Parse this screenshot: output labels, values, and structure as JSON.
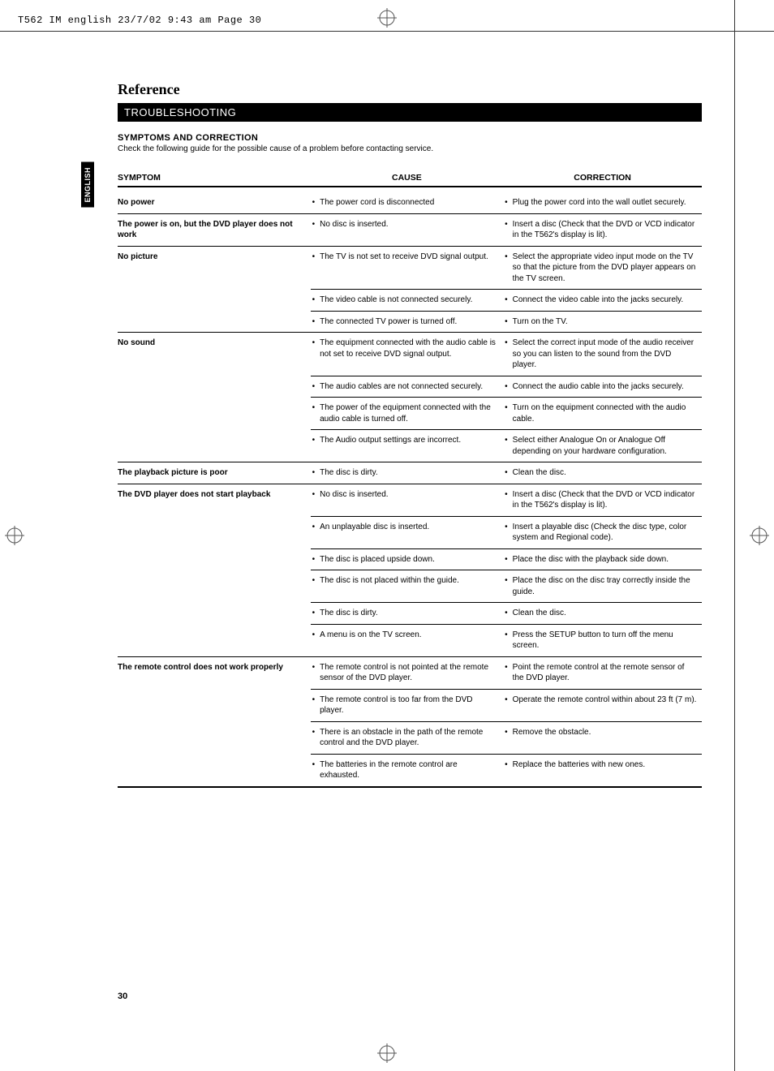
{
  "print_header": "T562 IM english  23/7/02  9:43 am  Page 30",
  "language_tab": "ENGLISH",
  "page_number": "30",
  "section_title": "Reference",
  "section_bar": "TROUBLESHOOTING",
  "subheading": "SYMPTOMS AND CORRECTION",
  "intro": "Check the following guide for the possible cause of a problem before contacting service.",
  "headers": {
    "symptom": "SYMPTOM",
    "cause": "CAUSE",
    "correction": "CORRECTION"
  },
  "rows": [
    {
      "symptom": "No power",
      "pairs": [
        {
          "cause": "The power cord is disconnected",
          "correction": "Plug the power cord into the wall outlet securely."
        }
      ]
    },
    {
      "symptom": "The power is on, but the DVD player does not work",
      "pairs": [
        {
          "cause": "No disc is inserted.",
          "correction": "Insert a disc (Check that the DVD or VCD indicator in the T562's display is lit)."
        }
      ]
    },
    {
      "symptom": "No picture",
      "pairs": [
        {
          "cause": "The TV is not set to receive DVD signal output.",
          "correction": "Select the appropriate video input mode on the TV so that the picture from the DVD player appears on the TV screen."
        },
        {
          "cause": "The video cable is not connected securely.",
          "correction": "Connect the video cable into the jacks securely."
        },
        {
          "cause": "The connected TV power is turned off.",
          "correction": "Turn on the TV."
        }
      ]
    },
    {
      "symptom": "No sound",
      "pairs": [
        {
          "cause": "The equipment connected with the audio cable is not set to receive DVD signal output.",
          "correction": "Select the correct input mode of the audio receiver so you can listen to the sound from the DVD player."
        },
        {
          "cause": "The audio cables are not connected securely.",
          "correction": "Connect the audio cable into the jacks securely."
        },
        {
          "cause": "The power of the equipment connected with the audio cable is turned off.",
          "correction": "Turn on the equipment connected with the audio cable."
        },
        {
          "cause": "The Audio output settings are incorrect.",
          "correction": "Select either Analogue On or Analogue Off depending on your hardware configuration."
        }
      ]
    },
    {
      "symptom": "The playback picture is poor",
      "pairs": [
        {
          "cause": "The disc is dirty.",
          "correction": "Clean the disc."
        }
      ]
    },
    {
      "symptom": "The DVD player does not start playback",
      "pairs": [
        {
          "cause": "No disc is inserted.",
          "correction": "Insert a disc (Check that the DVD or VCD indicator in the T562's display is lit)."
        },
        {
          "cause": "An unplayable disc is inserted.",
          "correction": "Insert a playable disc (Check the disc type, color system and Regional code)."
        },
        {
          "cause": "The disc is placed upside down.",
          "correction": "Place the disc with the playback side down."
        },
        {
          "cause": "The disc is not placed within the guide.",
          "correction": "Place the disc on the disc tray correctly inside the guide."
        },
        {
          "cause": "The disc is dirty.",
          "correction": "Clean the disc."
        },
        {
          "cause": "A menu is on the TV screen.",
          "correction": "Press the SETUP button to turn off the menu screen."
        }
      ]
    },
    {
      "symptom": "The remote control does not work properly",
      "pairs": [
        {
          "cause": "The remote control is not pointed at the remote sensor of the DVD player.",
          "correction": "Point the remote control at the remote sensor of the DVD player."
        },
        {
          "cause": "The remote control is too far from the DVD player.",
          "correction": "Operate the remote control within about 23 ft (7 m)."
        },
        {
          "cause": "There is an obstacle in the path of the remote control and the DVD player.",
          "correction": "Remove the obstacle."
        },
        {
          "cause": "The batteries in the remote control are exhausted.",
          "correction": "Replace the batteries with new ones."
        }
      ]
    }
  ]
}
